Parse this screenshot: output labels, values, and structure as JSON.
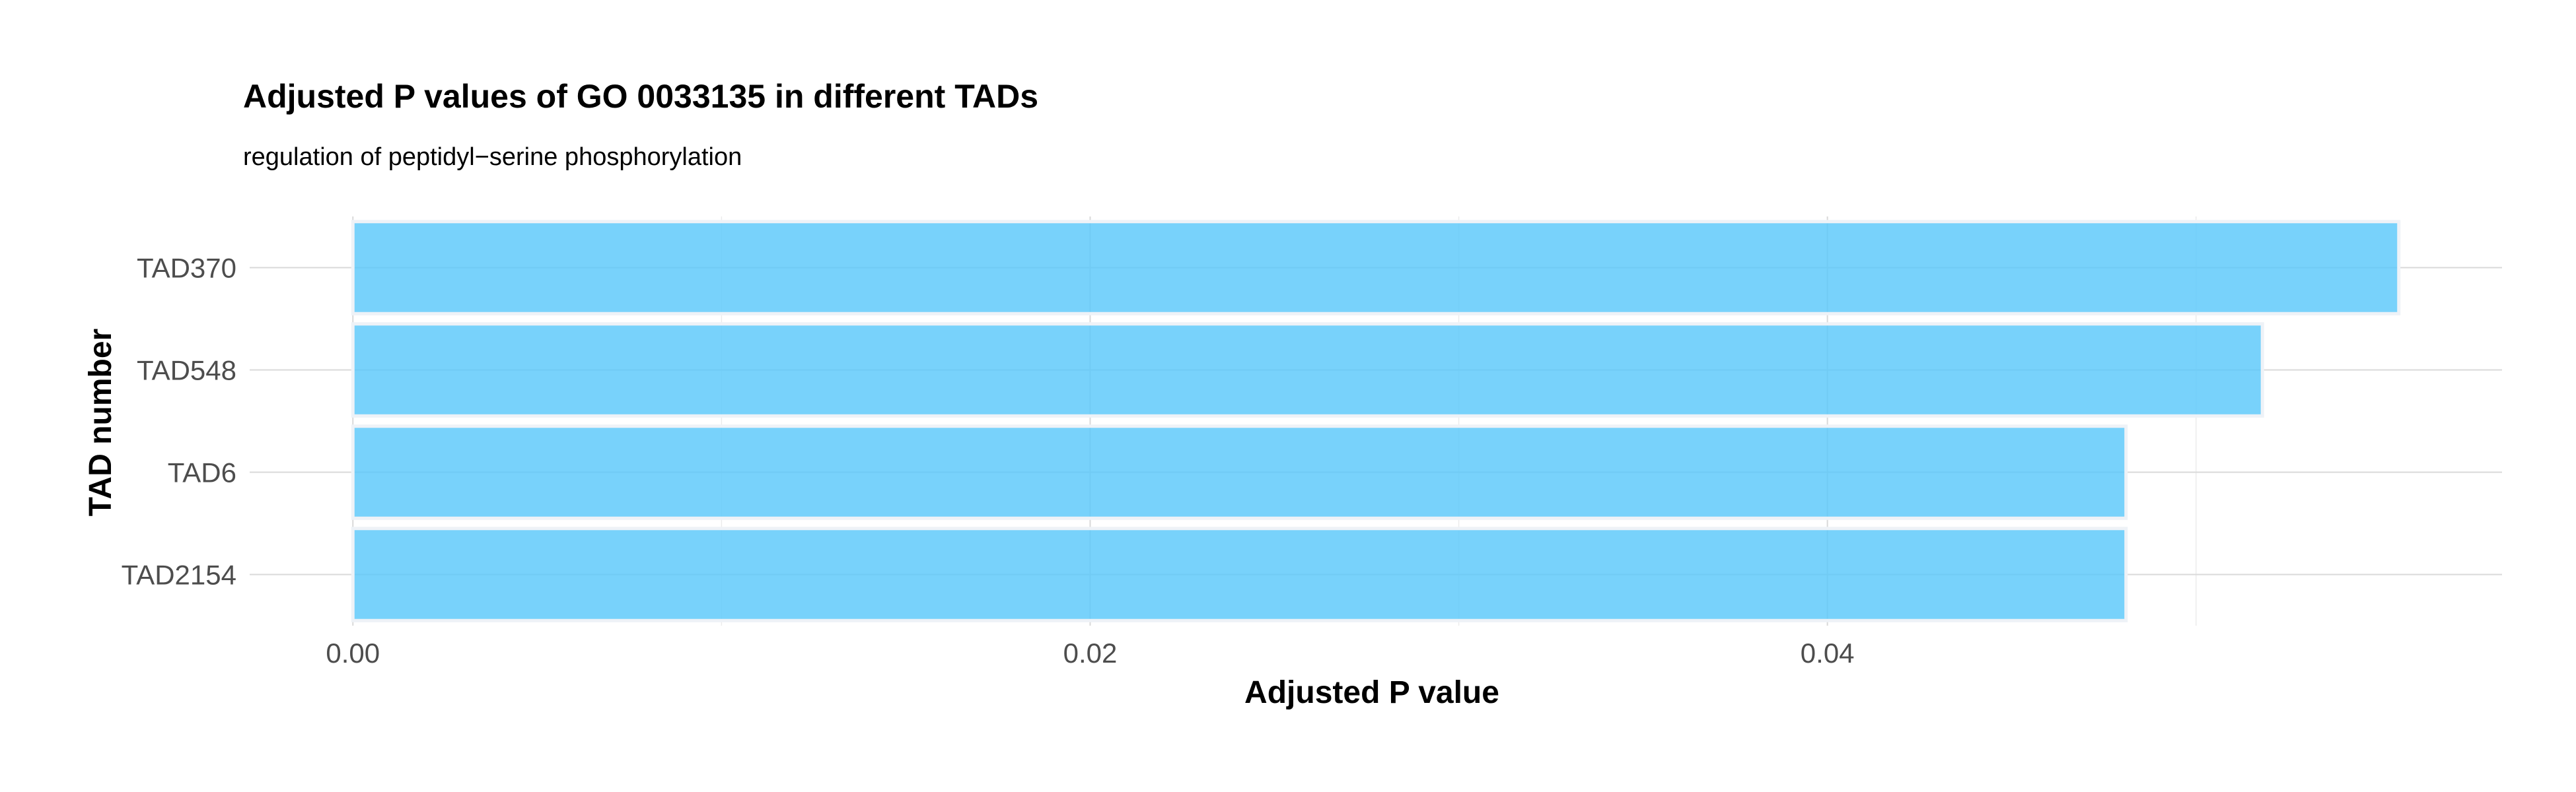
{
  "chart_data": {
    "type": "bar",
    "orientation": "horizontal",
    "title": "Adjusted P values of GO 0033135 in different TADs",
    "subtitle": "regulation of peptidyl−serine phosphorylation",
    "xlabel": "Adjusted P value",
    "ylabel": "TAD number",
    "categories": [
      "TAD370",
      "TAD548",
      "TAD6",
      "TAD2154"
    ],
    "values": [
      0.0555,
      0.0518,
      0.0481,
      0.0481
    ],
    "xlim": [
      -0.0028,
      0.0583
    ],
    "xticks": [
      0.0,
      0.02,
      0.04
    ],
    "xtick_labels": [
      "0.00",
      "0.02",
      "0.04"
    ],
    "grid": true,
    "colors": {
      "bar": "#5ac8fa",
      "bar_border": "#eef2f7"
    }
  }
}
